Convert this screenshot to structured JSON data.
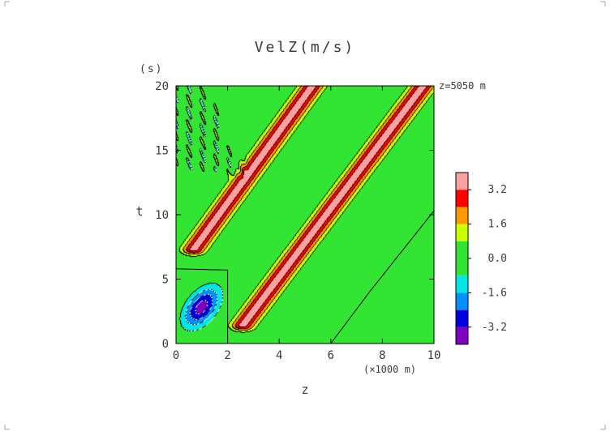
{
  "chart_data": {
    "type": "heatmap",
    "title": "VelZ(m/s)",
    "xlabel": "z",
    "x_unit": "(×1000 m)",
    "ylabel": "t",
    "y_unit": "(s)",
    "annotation": "z=5050 m",
    "xlim": [
      0,
      10
    ],
    "ylim": [
      0,
      20
    ],
    "x_ticks": [
      "0",
      "2",
      "4",
      "6",
      "8",
      "10"
    ],
    "y_ticks": [
      "0",
      "5",
      "10",
      "15",
      "20"
    ],
    "colorbar": {
      "levels": [
        -4.0,
        -3.2,
        -2.4,
        -1.6,
        -0.8,
        0.8,
        1.6,
        2.4,
        3.2,
        4.0
      ],
      "colors": [
        "#7f00bf",
        "#0000e0",
        "#0090ff",
        "#00e5e5",
        "#33e533",
        "#ccff00",
        "#ff9900",
        "#ff0000",
        "#ffa0a0"
      ],
      "tick_labels": [
        "3.2",
        "1.6",
        "0.0",
        "-1.6",
        "-3.2"
      ],
      "tick_values": [
        3.2,
        1.6,
        0.0,
        -1.6,
        -3.2
      ]
    },
    "features": {
      "background": 0.0,
      "pulse_bands": [
        {
          "z_start": 0.7,
          "t_start": 7.3,
          "z_end": 5.3,
          "t_end": 20,
          "peak": 3.6
        },
        {
          "z_start": 2.6,
          "t_start": 1.4,
          "z_end": 9.6,
          "t_end": 20,
          "peak": 3.6
        }
      ],
      "negative_ellipse": {
        "z": 1.0,
        "t": 2.8,
        "peak": -3.6
      },
      "oscillation_region": {
        "z_range": [
          0,
          2.6
        ],
        "t_range": [
          12.5,
          20
        ]
      },
      "region_boundaries": [
        {
          "points": [
            [
              0,
              5.8
            ],
            [
              2,
              5.7
            ],
            [
              2,
              0
            ]
          ]
        },
        {
          "points": [
            [
              6,
              0
            ],
            [
              7.5,
              4
            ],
            [
              10,
              10.3
            ]
          ]
        }
      ]
    }
  }
}
